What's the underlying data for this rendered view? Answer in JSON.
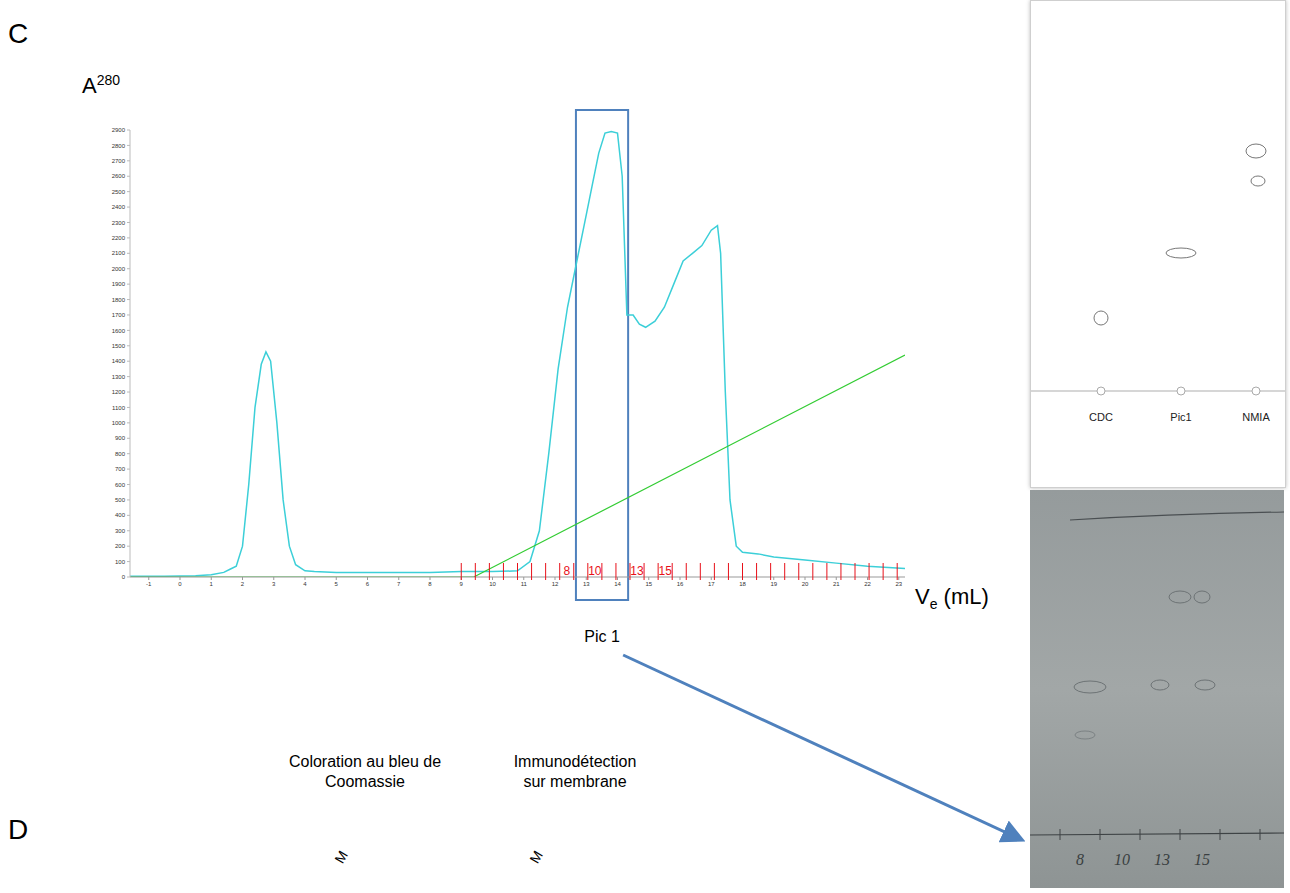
{
  "panel_labels": [
    "C",
    "D"
  ],
  "chart_data": {
    "type": "line",
    "ylabel": {
      "main": "A",
      "sup": "280"
    },
    "xlabel": {
      "main": "V",
      "sub": "e",
      "after": " (mL)"
    },
    "xlim": [
      -1.6,
      23.2
    ],
    "xticks": [
      -1,
      0,
      1,
      2,
      3,
      4,
      5,
      6,
      7,
      8,
      9,
      10,
      11,
      12,
      13,
      14,
      15,
      16,
      17,
      18,
      19,
      20,
      21,
      22,
      23
    ],
    "ylim": [
      0,
      2900
    ],
    "yticks": [
      0,
      100,
      200,
      300,
      400,
      500,
      600,
      700,
      800,
      900,
      1000,
      1100,
      1200,
      1300,
      1400,
      1500,
      1600,
      1700,
      1800,
      1900,
      2000,
      2100,
      2200,
      2300,
      2400,
      2500,
      2600,
      2700,
      2800,
      2900
    ],
    "grid": false,
    "series": [
      {
        "type": "line",
        "color": "#3ccfd8",
        "x": [
          -1.6,
          -0.5,
          0.5,
          1.0,
          1.4,
          1.6,
          1.8,
          2.0,
          2.2,
          2.4,
          2.6,
          2.75,
          2.9,
          3.1,
          3.3,
          3.5,
          3.7,
          4.0,
          4.3,
          5,
          6,
          7,
          8,
          9,
          10,
          10.8,
          11.2,
          11.5,
          11.8,
          12.1,
          12.4,
          12.7,
          13.0,
          13.2,
          13.4,
          13.6,
          13.8,
          14.0,
          14.15,
          14.3,
          14.5,
          14.7,
          14.9,
          15.2,
          15.5,
          15.8,
          16.1,
          16.4,
          16.7,
          17.0,
          17.2,
          17.3,
          17.45,
          17.6,
          17.8,
          18.0,
          18.5,
          19,
          20,
          21,
          22,
          23.2
        ],
        "values": [
          5,
          5,
          8,
          15,
          30,
          50,
          70,
          200,
          600,
          1100,
          1380,
          1460,
          1400,
          1000,
          500,
          200,
          80,
          40,
          35,
          30,
          30,
          30,
          30,
          35,
          35,
          40,
          100,
          300,
          800,
          1350,
          1750,
          2050,
          2350,
          2550,
          2750,
          2880,
          2890,
          2880,
          2600,
          1700,
          1700,
          1640,
          1620,
          1660,
          1750,
          1900,
          2050,
          2100,
          2150,
          2250,
          2280,
          2100,
          1200,
          500,
          200,
          160,
          150,
          130,
          110,
          90,
          70,
          55
        ]
      },
      {
        "type": "line",
        "color": "#33cc33",
        "x": [
          -1.6,
          9.4,
          23.2
        ],
        "values": [
          0,
          0,
          1440
        ]
      }
    ],
    "fraction_marks": {
      "color": "#e8101a",
      "x": [
        9.0,
        9.45,
        9.9,
        10.35,
        10.8,
        11.25,
        11.7,
        12.15,
        12.6,
        13.05,
        13.5,
        13.95,
        14.4,
        14.85,
        15.3,
        15.75,
        16.2,
        16.65,
        17.1,
        17.55,
        18.0,
        18.45,
        18.9,
        19.35,
        19.8,
        20.25,
        20.7,
        21.15,
        21.6,
        22.05,
        22.5,
        22.95
      ],
      "labels": [
        {
          "value": 12.375,
          "label": "8"
        },
        {
          "value": 13.275,
          "label": "10"
        },
        {
          "value": 14.625,
          "label": "13"
        },
        {
          "value": 15.525,
          "label": "15"
        }
      ]
    },
    "highlight": {
      "x": [
        12.67,
        14.34
      ],
      "label": "Pic 1",
      "color": "#4f81bd"
    }
  },
  "tlc_plate": {
    "lanes": [
      "CDC",
      "Pic1",
      "NMIA"
    ]
  },
  "photo": {
    "labels": [
      "8",
      "10",
      "13",
      "15"
    ]
  },
  "panel_d": {
    "headings": [
      "Coloration au bleu de Coomassie",
      "Immunodétection sur membrane"
    ],
    "lane_labels": [
      "M",
      "M"
    ]
  }
}
